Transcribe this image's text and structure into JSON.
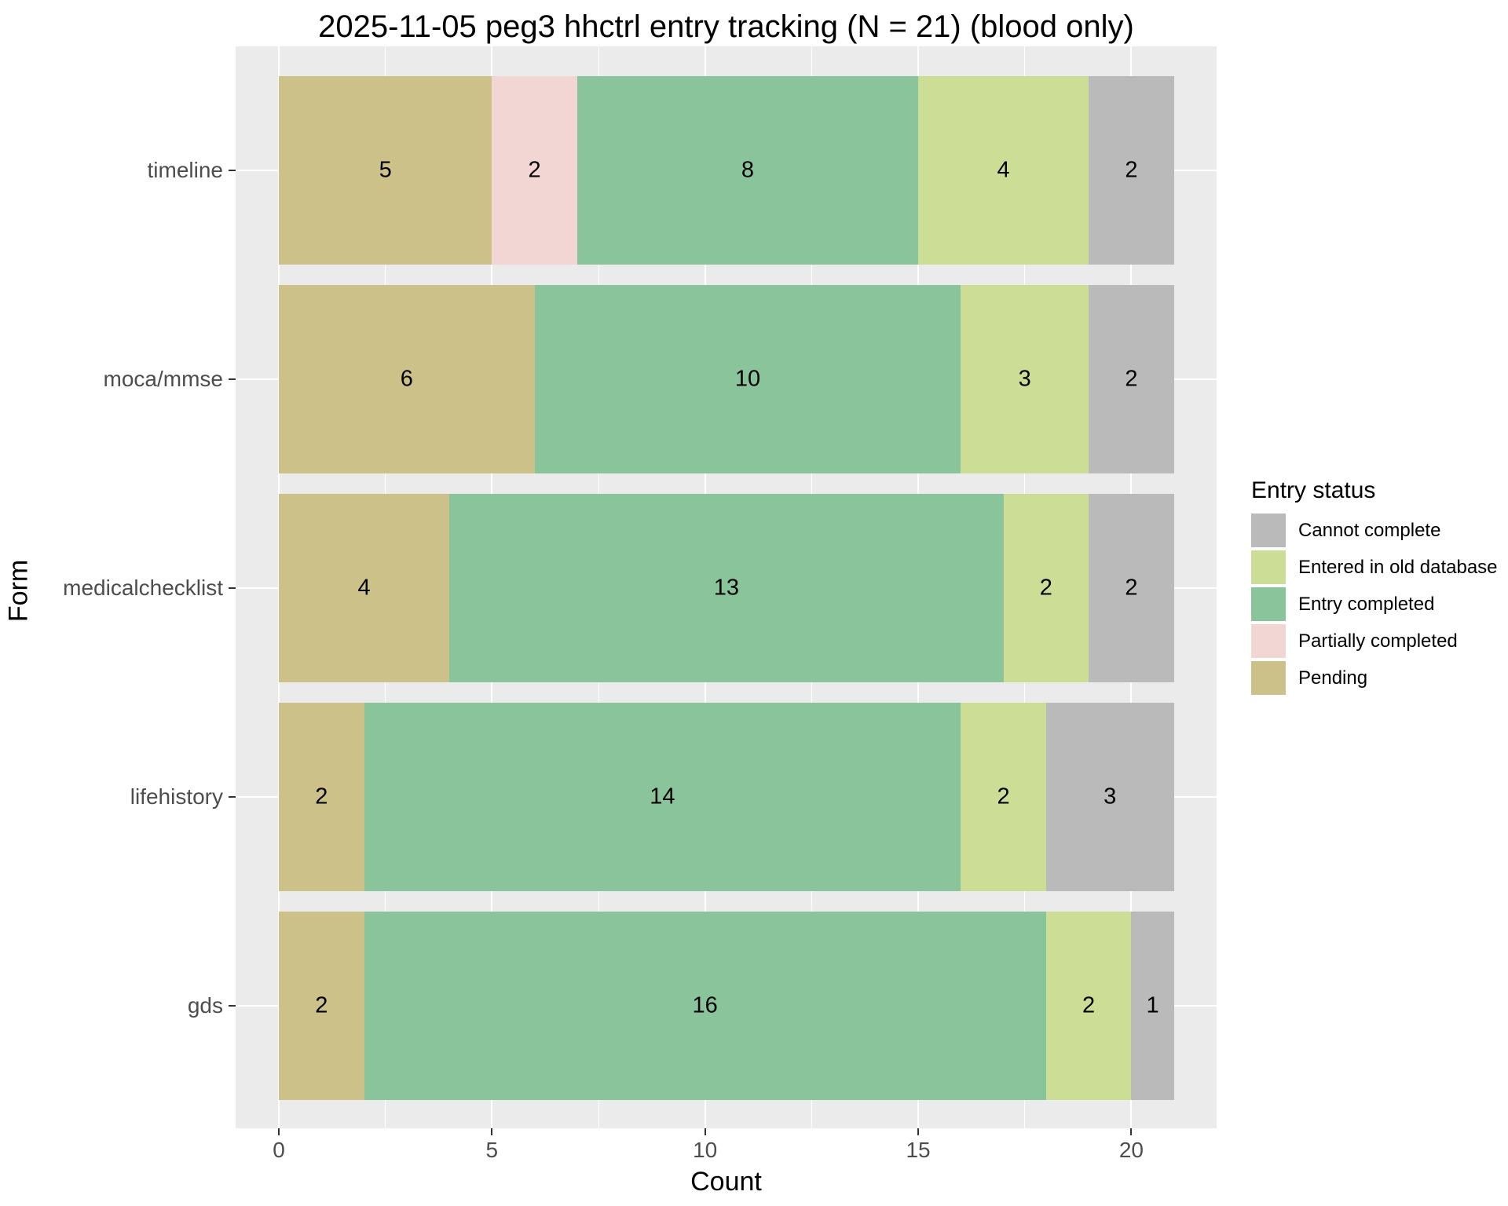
{
  "title": "2025-11-05 peg3 hhctrl entry tracking (N = 21) (blood only)",
  "axes": {
    "x_label": "Count",
    "y_label": "Form",
    "x_tick_labels": [
      "0",
      "5",
      "10",
      "15",
      "20"
    ]
  },
  "legend": {
    "title": "Entry status",
    "items": [
      {
        "label": "Cannot complete",
        "color": "#bababa"
      },
      {
        "label": "Entered in old database",
        "color": "#ccdd96"
      },
      {
        "label": "Entry completed",
        "color": "#8ac49b"
      },
      {
        "label": "Partially completed",
        "color": "#f2d6d3"
      },
      {
        "label": "Pending",
        "color": "#ccc189"
      }
    ]
  },
  "chart_data": {
    "type": "bar",
    "orientation": "horizontal",
    "stacked": true,
    "title": "2025-11-05 peg3 hhctrl entry tracking (N = 21) (blood only)",
    "xlabel": "Count",
    "ylabel": "Form",
    "xlim": [
      0,
      21
    ],
    "x_major_ticks": [
      0,
      5,
      10,
      15,
      20
    ],
    "x_minor_ticks": [
      2.5,
      7.5,
      12.5,
      17.5
    ],
    "grid": true,
    "panel_background": "#ebebeb",
    "gridline_color": "#ffffff",
    "legend_position": "right",
    "legend_title": "Entry status",
    "categories": [
      "timeline",
      "moca/mmse",
      "medicalchecklist",
      "lifehistory",
      "gds"
    ],
    "series": [
      {
        "name": "Pending",
        "color": "#ccc189",
        "values": [
          5,
          6,
          4,
          2,
          2
        ]
      },
      {
        "name": "Partially completed",
        "color": "#f2d6d3",
        "values": [
          2,
          0,
          0,
          0,
          0
        ]
      },
      {
        "name": "Entry completed",
        "color": "#8ac49b",
        "values": [
          8,
          10,
          13,
          14,
          16
        ]
      },
      {
        "name": "Entered in old database",
        "color": "#ccdd96",
        "values": [
          4,
          3,
          2,
          2,
          2
        ]
      },
      {
        "name": "Cannot complete",
        "color": "#bababa",
        "values": [
          2,
          2,
          2,
          3,
          1
        ]
      }
    ],
    "segment_value_labels_shown": true,
    "totals_per_category": [
      21,
      21,
      21,
      21,
      21
    ]
  }
}
